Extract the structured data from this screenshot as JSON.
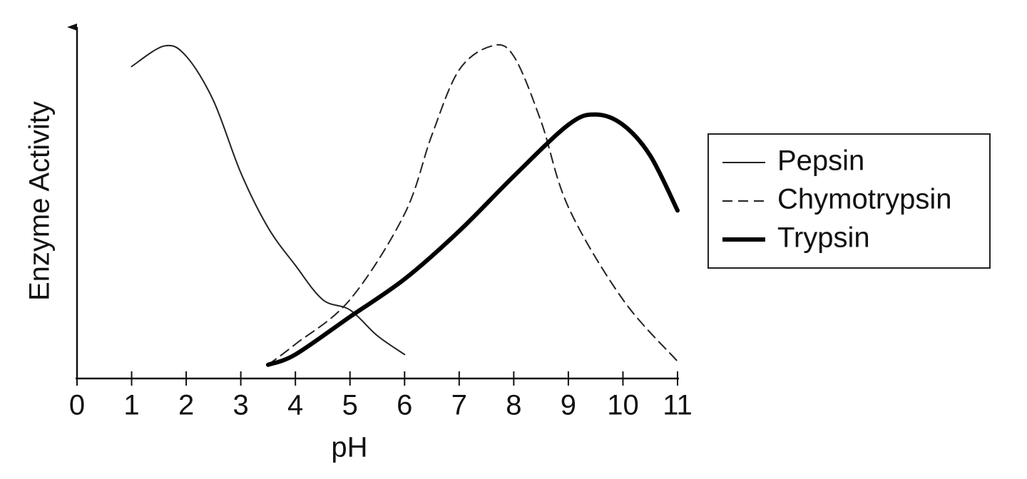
{
  "chart_data": {
    "type": "line",
    "x_label": "pH",
    "y_label": "Enzyme Activity",
    "xlim": [
      0,
      11
    ],
    "xticks": [
      0,
      1,
      2,
      3,
      4,
      5,
      6,
      7,
      8,
      9,
      10,
      11
    ],
    "ylim": [
      0,
      100
    ],
    "legend": "right",
    "series": [
      {
        "name": "Pepsin",
        "color": "#222222",
        "line_style": "solid",
        "line_width": 2,
        "x": [
          1,
          1.6,
          2,
          2.5,
          3,
          3.5,
          4,
          4.5,
          5,
          5.5,
          6
        ],
        "values": [
          91,
          97,
          94,
          81,
          60,
          44,
          33,
          23,
          20,
          12.5,
          7
        ]
      },
      {
        "name": "Chymotrypsin",
        "color": "#222222",
        "line_style": "dashed",
        "line_width": 2,
        "x": [
          3.5,
          4,
          5,
          6,
          6.5,
          7,
          7.6,
          8,
          8.5,
          9,
          10,
          11
        ],
        "values": [
          4,
          10,
          23,
          48,
          71,
          90,
          97,
          94,
          75,
          50,
          23,
          5
        ]
      },
      {
        "name": "Trypsin",
        "color": "#000000",
        "line_style": "solid",
        "line_width": 6,
        "x": [
          3.5,
          4,
          5,
          6,
          7,
          8,
          9,
          9.5,
          10,
          10.5,
          11
        ],
        "values": [
          4,
          7,
          18,
          29,
          43,
          59,
          74,
          77,
          74,
          65,
          49
        ]
      }
    ]
  }
}
